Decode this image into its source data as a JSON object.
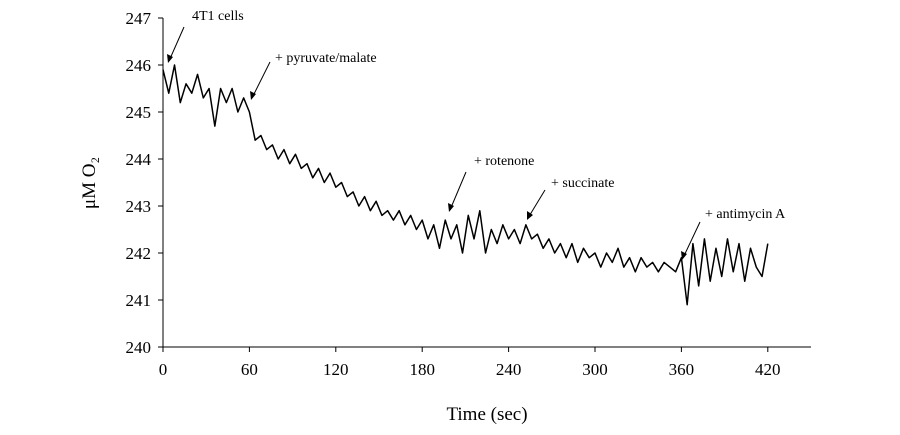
{
  "chart_data": {
    "type": "line",
    "x_label": "Time (sec)",
    "y_label": "μM O₂",
    "annotations": [
      "4T1 cells",
      "+ pyruvate/malate",
      "+ rotenone",
      "+ succinate",
      "+ antimycin A"
    ],
    "x": [
      0,
      4,
      8,
      12,
      16,
      20,
      24,
      28,
      32,
      36,
      40,
      44,
      48,
      52,
      56,
      60,
      64,
      68,
      72,
      76,
      80,
      84,
      88,
      92,
      96,
      100,
      104,
      108,
      112,
      116,
      120,
      124,
      128,
      132,
      136,
      140,
      144,
      148,
      152,
      156,
      160,
      164,
      168,
      172,
      176,
      180,
      184,
      188,
      192,
      196,
      200,
      204,
      208,
      212,
      216,
      220,
      224,
      228,
      232,
      236,
      240,
      244,
      248,
      252,
      256,
      260,
      264,
      268,
      272,
      276,
      280,
      284,
      288,
      292,
      296,
      300,
      304,
      308,
      312,
      316,
      320,
      324,
      328,
      332,
      336,
      340,
      344,
      348,
      352,
      356,
      360,
      364,
      368,
      372,
      376,
      380,
      384,
      388,
      392,
      396,
      400,
      404,
      408,
      412,
      416,
      420
    ],
    "series": [
      {
        "color": "#000000",
        "values": [
          245.9,
          245.4,
          246.0,
          245.2,
          245.6,
          245.4,
          245.8,
          245.3,
          245.5,
          244.7,
          245.5,
          245.2,
          245.5,
          245.0,
          245.3,
          245.0,
          244.4,
          244.5,
          244.2,
          244.3,
          244.0,
          244.2,
          243.9,
          244.1,
          243.8,
          243.9,
          243.6,
          243.8,
          243.5,
          243.7,
          243.4,
          243.5,
          243.2,
          243.3,
          243.0,
          243.2,
          242.9,
          243.1,
          242.8,
          242.9,
          242.7,
          242.9,
          242.6,
          242.8,
          242.5,
          242.7,
          242.3,
          242.6,
          242.1,
          242.7,
          242.3,
          242.6,
          242.0,
          242.8,
          242.3,
          242.9,
          242.0,
          242.5,
          242.2,
          242.6,
          242.3,
          242.5,
          242.2,
          242.6,
          242.3,
          242.4,
          242.1,
          242.3,
          242.0,
          242.2,
          241.9,
          242.2,
          241.8,
          242.1,
          241.9,
          242.0,
          241.7,
          242.0,
          241.8,
          242.1,
          241.7,
          241.9,
          241.6,
          241.9,
          241.7,
          241.8,
          241.6,
          241.8,
          241.7,
          241.6,
          241.9,
          240.9,
          242.2,
          241.3,
          242.3,
          241.4,
          242.1,
          241.5,
          242.3,
          241.6,
          242.2,
          241.4,
          242.1,
          241.7,
          241.5,
          242.2
        ]
      }
    ],
    "xlim": [
      0,
      450
    ],
    "ylim": [
      240,
      247
    ],
    "xticks": [
      0,
      60,
      120,
      180,
      240,
      300,
      360,
      420
    ],
    "yticks": [
      240,
      241,
      242,
      243,
      244,
      245,
      246,
      247
    ]
  }
}
